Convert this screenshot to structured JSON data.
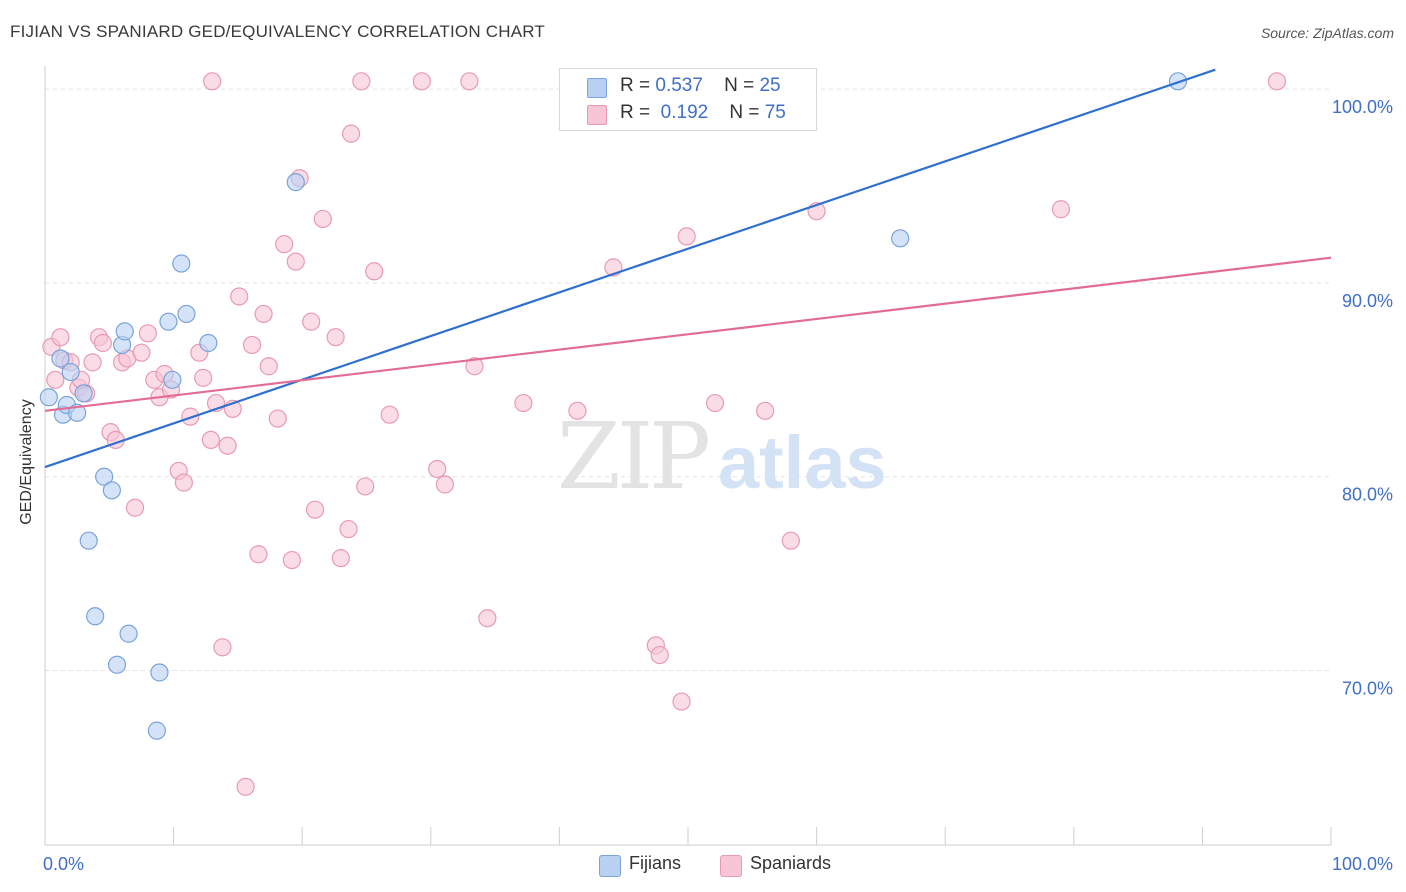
{
  "title": "FIJIAN VS SPANIARD GED/EQUIVALENCY CORRELATION CHART",
  "source": "Source: ZipAtlas.com",
  "watermark": {
    "zip": "ZIP",
    "atlas": "atlas"
  },
  "legend_top": [
    {
      "r_label": "R =",
      "r_value": "0.537",
      "n_label": "N =",
      "n_value": "25"
    },
    {
      "r_label": "R =",
      "r_value": "0.192",
      "n_label": "N =",
      "n_value": "75"
    }
  ],
  "legend_bottom": [
    "Fijians",
    "Spaniards"
  ],
  "colors": {
    "fijians_fill": "#b8d1f3",
    "fijians_stroke": "#7ba3dc",
    "fijians_line": "#2e6fd0",
    "spaniards_fill": "#f7c5d5",
    "spaniards_stroke": "#e99ab3",
    "spaniards_line": "#e26c96",
    "tick_label": "#3f6fc7"
  },
  "chart_data": {
    "type": "scatter",
    "xlabel": "",
    "ylabel": "GED/Equivalency",
    "xlim": [
      0,
      100
    ],
    "ylim": [
      61,
      101.5
    ],
    "x_tick_labels": [
      {
        "v": 0,
        "label": "0.0%"
      },
      {
        "v": 100,
        "label": "100.0%"
      }
    ],
    "y_ticks": [
      {
        "v": 100,
        "label": "100.0%"
      },
      {
        "v": 90,
        "label": "90.0%"
      },
      {
        "v": 80,
        "label": "80.0%"
      },
      {
        "v": 70,
        "label": "70.0%"
      }
    ],
    "grid": true,
    "series": [
      {
        "name": "Fijians",
        "r": 0.537,
        "n": 25,
        "trend": {
          "x0": 0,
          "y0": 80.5,
          "x1": 91,
          "y1": 101
        },
        "points": [
          [
            0.3,
            84.1
          ],
          [
            1.2,
            86.1
          ],
          [
            1.4,
            83.2
          ],
          [
            1.7,
            83.7
          ],
          [
            2.0,
            85.4
          ],
          [
            2.5,
            83.3
          ],
          [
            3.0,
            84.3
          ],
          [
            3.4,
            76.7
          ],
          [
            3.9,
            72.8
          ],
          [
            4.6,
            80.0
          ],
          [
            5.2,
            79.3
          ],
          [
            5.6,
            70.3
          ],
          [
            6.0,
            86.8
          ],
          [
            6.2,
            87.5
          ],
          [
            6.5,
            71.9
          ],
          [
            8.7,
            66.9
          ],
          [
            8.9,
            69.9
          ],
          [
            9.6,
            88.0
          ],
          [
            9.9,
            85.0
          ],
          [
            10.6,
            91.0
          ],
          [
            11.0,
            88.4
          ],
          [
            12.7,
            86.9
          ],
          [
            19.5,
            95.2
          ],
          [
            66.5,
            92.3
          ],
          [
            88.1,
            100.4
          ]
        ]
      },
      {
        "name": "Spaniards",
        "r": 0.192,
        "n": 75,
        "trend": {
          "x0": 0,
          "y0": 83.4,
          "x1": 100,
          "y1": 91.3
        },
        "points": [
          [
            0.5,
            86.7
          ],
          [
            1.2,
            87.2
          ],
          [
            1.5,
            86.0
          ],
          [
            2.0,
            85.9
          ],
          [
            2.6,
            84.6
          ],
          [
            3.2,
            84.3
          ],
          [
            3.7,
            85.9
          ],
          [
            4.2,
            87.2
          ],
          [
            4.5,
            86.9
          ],
          [
            5.1,
            82.3
          ],
          [
            5.5,
            81.9
          ],
          [
            6.0,
            85.9
          ],
          [
            6.4,
            86.1
          ],
          [
            7.0,
            78.4
          ],
          [
            7.5,
            86.4
          ],
          [
            8.0,
            87.4
          ],
          [
            8.5,
            85.0
          ],
          [
            8.9,
            84.1
          ],
          [
            9.3,
            85.3
          ],
          [
            9.8,
            84.5
          ],
          [
            10.4,
            80.3
          ],
          [
            10.8,
            79.7
          ],
          [
            11.3,
            83.1
          ],
          [
            12.0,
            86.4
          ],
          [
            12.3,
            85.1
          ],
          [
            12.9,
            81.9
          ],
          [
            13.3,
            83.8
          ],
          [
            13.8,
            71.2
          ],
          [
            14.2,
            81.6
          ],
          [
            14.6,
            83.5
          ],
          [
            15.1,
            89.3
          ],
          [
            15.6,
            64.0
          ],
          [
            16.1,
            86.8
          ],
          [
            16.6,
            76.0
          ],
          [
            17.0,
            88.4
          ],
          [
            17.4,
            85.7
          ],
          [
            18.1,
            83.0
          ],
          [
            18.6,
            92.0
          ],
          [
            19.2,
            75.7
          ],
          [
            19.5,
            91.1
          ],
          [
            19.8,
            95.4
          ],
          [
            20.7,
            88.0
          ],
          [
            21.0,
            78.3
          ],
          [
            21.6,
            93.3
          ],
          [
            22.6,
            87.2
          ],
          [
            23.0,
            75.8
          ],
          [
            23.6,
            77.3
          ],
          [
            23.8,
            97.7
          ],
          [
            24.6,
            100.4
          ],
          [
            24.9,
            79.5
          ],
          [
            25.6,
            90.6
          ],
          [
            26.8,
            83.2
          ],
          [
            29.3,
            100.4
          ],
          [
            30.5,
            80.4
          ],
          [
            31.1,
            79.6
          ],
          [
            33.0,
            100.4
          ],
          [
            33.4,
            85.7
          ],
          [
            34.4,
            72.7
          ],
          [
            37.2,
            83.8
          ],
          [
            41.0,
            100.4
          ],
          [
            41.4,
            83.4
          ],
          [
            44.2,
            90.8
          ],
          [
            47.5,
            71.3
          ],
          [
            47.8,
            70.8
          ],
          [
            49.5,
            68.4
          ],
          [
            49.9,
            92.4
          ],
          [
            52.1,
            83.8
          ],
          [
            56.0,
            83.4
          ],
          [
            58.0,
            76.7
          ],
          [
            60.0,
            93.7
          ],
          [
            79.0,
            93.8
          ],
          [
            95.8,
            100.4
          ],
          [
            13.0,
            100.4
          ],
          [
            0.8,
            85.0
          ],
          [
            2.8,
            85.0
          ]
        ]
      }
    ]
  }
}
